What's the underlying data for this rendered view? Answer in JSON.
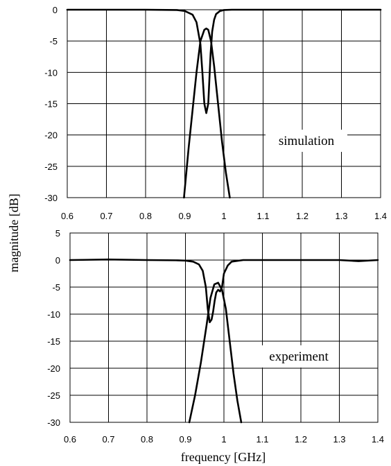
{
  "ylabel": "magnitude [dB]",
  "xlabel": "frequency [GHz]",
  "chart_data": [
    {
      "type": "line",
      "title": "",
      "annotation": "simulation",
      "xlim": [
        0.6,
        1.4
      ],
      "ylim": [
        -30,
        0
      ],
      "x_ticks": [
        "0.6",
        "0.7",
        "0.8",
        "0.9",
        "1",
        "1.1",
        "1.2",
        "1.3",
        "1.4"
      ],
      "y_ticks": [
        "0",
        "-5",
        "-10",
        "-15",
        "-20",
        "-25",
        "-30"
      ],
      "grid": true,
      "series": [
        {
          "x": [
            0.6,
            0.8,
            0.88,
            0.9,
            0.92,
            0.93,
            0.94,
            0.945,
            0.95,
            0.955,
            0.96,
            0.963,
            0.966,
            0.97,
            0.975,
            0.98,
            0.99,
            1.0,
            1.02,
            1.1,
            1.4
          ],
          "y": [
            0,
            0,
            -0.05,
            -0.2,
            -0.8,
            -2.0,
            -5.5,
            -10,
            -15,
            -16.5,
            -15,
            -11,
            -7,
            -3.5,
            -1.6,
            -0.7,
            -0.2,
            -0.05,
            0,
            0,
            0
          ]
        },
        {
          "x": [
            0.898,
            0.91,
            0.92,
            0.93,
            0.94,
            0.95,
            0.955,
            0.96,
            0.967,
            0.975,
            0.985,
            0.995,
            1.005,
            1.015
          ],
          "y": [
            -30,
            -22,
            -16,
            -10,
            -5,
            -3.2,
            -3.0,
            -3.2,
            -5,
            -9,
            -15,
            -21,
            -26,
            -30
          ]
        }
      ]
    },
    {
      "type": "line",
      "title": "",
      "annotation": "experiment",
      "xlim": [
        0.6,
        1.4
      ],
      "ylim": [
        -30,
        5
      ],
      "x_ticks": [
        "0.6",
        "0.7",
        "0.8",
        "0.9",
        "1",
        "1.1",
        "1.2",
        "1.3",
        "1.4"
      ],
      "y_ticks": [
        "5",
        "0",
        "-5",
        "-10",
        "-15",
        "-20",
        "-25",
        "-30"
      ],
      "grid": true,
      "series": [
        {
          "x": [
            0.6,
            0.7,
            0.8,
            0.88,
            0.9,
            0.92,
            0.935,
            0.945,
            0.953,
            0.958,
            0.963,
            0.968,
            0.972,
            0.976,
            0.98,
            0.985,
            0.99,
            0.995,
            1.0,
            1.01,
            1.02,
            1.05,
            1.1,
            1.2,
            1.3,
            1.35,
            1.4
          ],
          "y": [
            0,
            0.1,
            0,
            -0.05,
            -0.1,
            -0.3,
            -0.8,
            -2.0,
            -5.0,
            -9.0,
            -11.5,
            -11.0,
            -9.5,
            -7.5,
            -6.0,
            -5.5,
            -5.8,
            -5.0,
            -2.5,
            -1.0,
            -0.3,
            0,
            0,
            0,
            0,
            -0.2,
            0
          ]
        },
        {
          "x": [
            0.91,
            0.925,
            0.94,
            0.955,
            0.965,
            0.975,
            0.985,
            0.995,
            1.005,
            1.015,
            1.025,
            1.035,
            1.045
          ],
          "y": [
            -30,
            -25,
            -19,
            -12,
            -7,
            -4.5,
            -4.2,
            -5.5,
            -9,
            -15,
            -21,
            -26,
            -30
          ]
        }
      ]
    }
  ]
}
